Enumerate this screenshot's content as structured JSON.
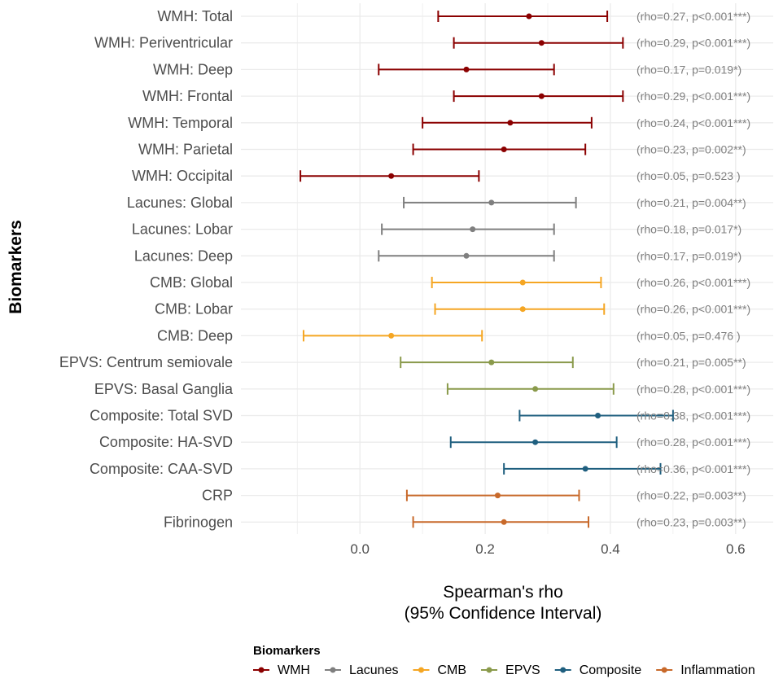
{
  "chart_data": {
    "type": "forest",
    "xlabel_line1": "Spearman's rho",
    "xlabel_line2": "(95% Confidence Interval)",
    "ylabel": "Biomarkers",
    "xlim": [
      -0.19,
      0.66
    ],
    "x_ticks": [
      "0.0",
      "0.2",
      "0.4",
      "0.6"
    ],
    "x_tick_values": [
      0.0,
      0.2,
      0.4,
      0.6
    ],
    "grid": true,
    "legend_position": "bottom",
    "legend_title": "Biomarkers",
    "groups": [
      {
        "name": "WMH",
        "color": "#8B0000"
      },
      {
        "name": "Lacunes",
        "color": "#7F7F7F"
      },
      {
        "name": "CMB",
        "color": "#F5A623"
      },
      {
        "name": "EPVS",
        "color": "#8A9A4B"
      },
      {
        "name": "Composite",
        "color": "#1F5F7F"
      },
      {
        "name": "Inflammation",
        "color": "#C8692A"
      }
    ],
    "rows": [
      {
        "label": "WMH: Total",
        "group": "WMH",
        "rho": 0.27,
        "lower": 0.125,
        "upper": 0.395,
        "annotation": "(rho=0.27, p<0.001***)"
      },
      {
        "label": "WMH: Periventricular",
        "group": "WMH",
        "rho": 0.29,
        "lower": 0.15,
        "upper": 0.42,
        "annotation": "(rho=0.29, p<0.001***)"
      },
      {
        "label": "WMH: Deep",
        "group": "WMH",
        "rho": 0.17,
        "lower": 0.03,
        "upper": 0.31,
        "annotation": "(rho=0.17, p=0.019*)"
      },
      {
        "label": "WMH: Frontal",
        "group": "WMH",
        "rho": 0.29,
        "lower": 0.15,
        "upper": 0.42,
        "annotation": "(rho=0.29, p<0.001***)"
      },
      {
        "label": "WMH: Temporal",
        "group": "WMH",
        "rho": 0.24,
        "lower": 0.1,
        "upper": 0.37,
        "annotation": "(rho=0.24, p<0.001***)"
      },
      {
        "label": "WMH: Parietal",
        "group": "WMH",
        "rho": 0.23,
        "lower": 0.085,
        "upper": 0.36,
        "annotation": "(rho=0.23, p=0.002**)"
      },
      {
        "label": "WMH: Occipital",
        "group": "WMH",
        "rho": 0.05,
        "lower": -0.095,
        "upper": 0.19,
        "annotation": "(rho=0.05, p=0.523 )"
      },
      {
        "label": "Lacunes: Global",
        "group": "Lacunes",
        "rho": 0.21,
        "lower": 0.07,
        "upper": 0.345,
        "annotation": "(rho=0.21, p=0.004**)"
      },
      {
        "label": "Lacunes: Lobar",
        "group": "Lacunes",
        "rho": 0.18,
        "lower": 0.035,
        "upper": 0.31,
        "annotation": "(rho=0.18, p=0.017*)"
      },
      {
        "label": "Lacunes: Deep",
        "group": "Lacunes",
        "rho": 0.17,
        "lower": 0.03,
        "upper": 0.31,
        "annotation": "(rho=0.17, p=0.019*)"
      },
      {
        "label": "CMB: Global",
        "group": "CMB",
        "rho": 0.26,
        "lower": 0.115,
        "upper": 0.385,
        "annotation": "(rho=0.26, p<0.001***)"
      },
      {
        "label": "CMB: Lobar",
        "group": "CMB",
        "rho": 0.26,
        "lower": 0.12,
        "upper": 0.39,
        "annotation": "(rho=0.26, p<0.001***)"
      },
      {
        "label": "CMB: Deep",
        "group": "CMB",
        "rho": 0.05,
        "lower": -0.09,
        "upper": 0.195,
        "annotation": "(rho=0.05, p=0.476 )"
      },
      {
        "label": "EPVS: Centrum semiovale",
        "group": "EPVS",
        "rho": 0.21,
        "lower": 0.065,
        "upper": 0.34,
        "annotation": "(rho=0.21, p=0.005**)"
      },
      {
        "label": "EPVS: Basal Ganglia",
        "group": "EPVS",
        "rho": 0.28,
        "lower": 0.14,
        "upper": 0.405,
        "annotation": "(rho=0.28, p<0.001***)"
      },
      {
        "label": "Composite: Total SVD",
        "group": "Composite",
        "rho": 0.38,
        "lower": 0.255,
        "upper": 0.5,
        "annotation": "(rho=0.38, p<0.001***)"
      },
      {
        "label": "Composite: HA-SVD",
        "group": "Composite",
        "rho": 0.28,
        "lower": 0.145,
        "upper": 0.41,
        "annotation": "(rho=0.28, p<0.001***)"
      },
      {
        "label": "Composite: CAA-SVD",
        "group": "Composite",
        "rho": 0.36,
        "lower": 0.23,
        "upper": 0.48,
        "annotation": "(rho=0.36, p<0.001***)"
      },
      {
        "label": "CRP",
        "group": "Inflammation",
        "rho": 0.22,
        "lower": 0.075,
        "upper": 0.35,
        "annotation": "(rho=0.22, p=0.003**)"
      },
      {
        "label": "Fibrinogen",
        "group": "Inflammation",
        "rho": 0.23,
        "lower": 0.085,
        "upper": 0.365,
        "annotation": "(rho=0.23, p=0.003**)"
      }
    ]
  }
}
